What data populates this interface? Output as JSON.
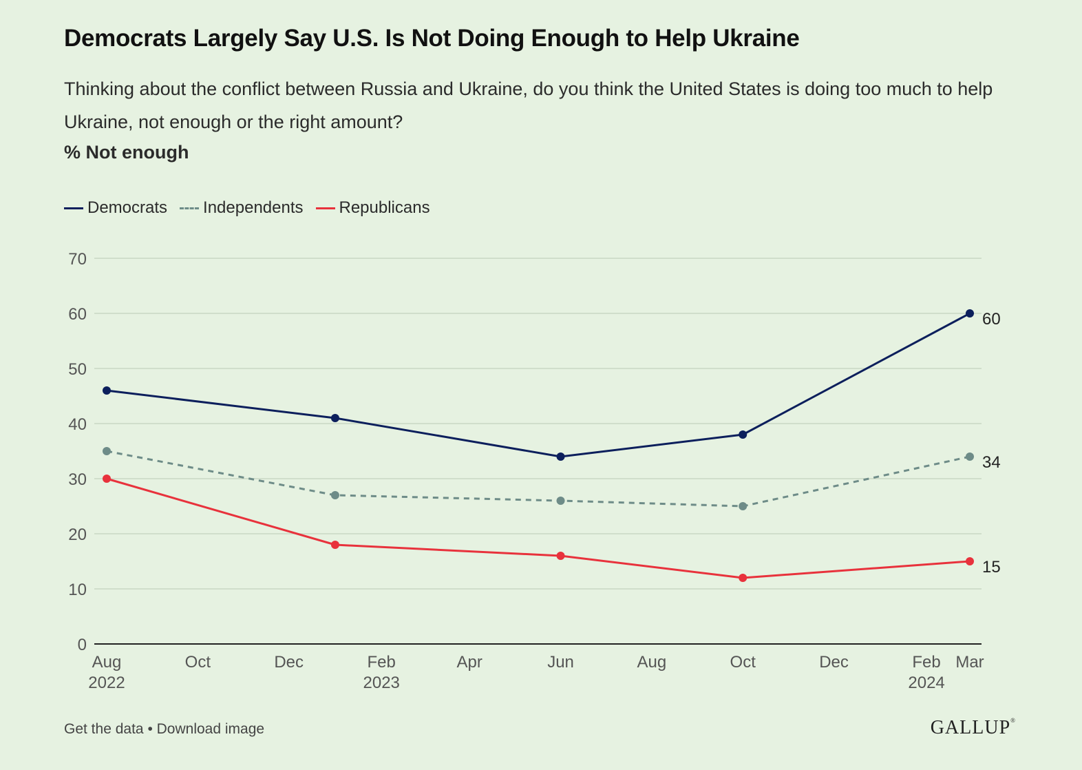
{
  "chart_data": {
    "type": "line",
    "title": "Democrats Largely Say U.S. Is Not Doing Enough to Help Ukraine",
    "subtitle": "Thinking about the conflict between Russia and Ukraine, do you think the United States is doing too much to help Ukraine, not enough or the right amount?",
    "measure_label": "% Not enough",
    "x": [
      "2022-08",
      "2023-01",
      "2023-06",
      "2023-10",
      "2024-03"
    ],
    "series": [
      {
        "name": "Democrats",
        "values": [
          46,
          41,
          34,
          38,
          60
        ],
        "color": "#0c1f5c",
        "dashed": false,
        "end_label": "60"
      },
      {
        "name": "Independents",
        "values": [
          35,
          27,
          26,
          25,
          34
        ],
        "color": "#6e8c88",
        "dashed": true,
        "end_label": "34"
      },
      {
        "name": "Republicans",
        "values": [
          30,
          18,
          16,
          12,
          15
        ],
        "color": "#e8323c",
        "dashed": false,
        "end_label": "15"
      }
    ],
    "ylim": [
      0,
      70
    ],
    "y_ticks": [
      "0",
      "10",
      "20",
      "30",
      "40",
      "50",
      "60",
      "70"
    ],
    "x_ticks": [
      {
        "date": "2022-08",
        "label": "Aug",
        "year": "2022"
      },
      {
        "date": "2022-10",
        "label": "Oct",
        "year": ""
      },
      {
        "date": "2022-12",
        "label": "Dec",
        "year": ""
      },
      {
        "date": "2023-02",
        "label": "Feb",
        "year": "2023"
      },
      {
        "date": "2023-04",
        "label": "Apr",
        "year": ""
      },
      {
        "date": "2023-06",
        "label": "Jun",
        "year": ""
      },
      {
        "date": "2023-08",
        "label": "Aug",
        "year": ""
      },
      {
        "date": "2023-10",
        "label": "Oct",
        "year": ""
      },
      {
        "date": "2023-12",
        "label": "Dec",
        "year": ""
      },
      {
        "date": "2024-02",
        "label": "Feb",
        "year": "2024"
      },
      {
        "date": "2024-03",
        "label": "Mar",
        "year": ""
      }
    ],
    "grid": true,
    "legend": "top-left"
  },
  "footer": {
    "get_data": "Get the data",
    "separator": "•",
    "download": "Download image"
  },
  "logo": "GALLUP"
}
